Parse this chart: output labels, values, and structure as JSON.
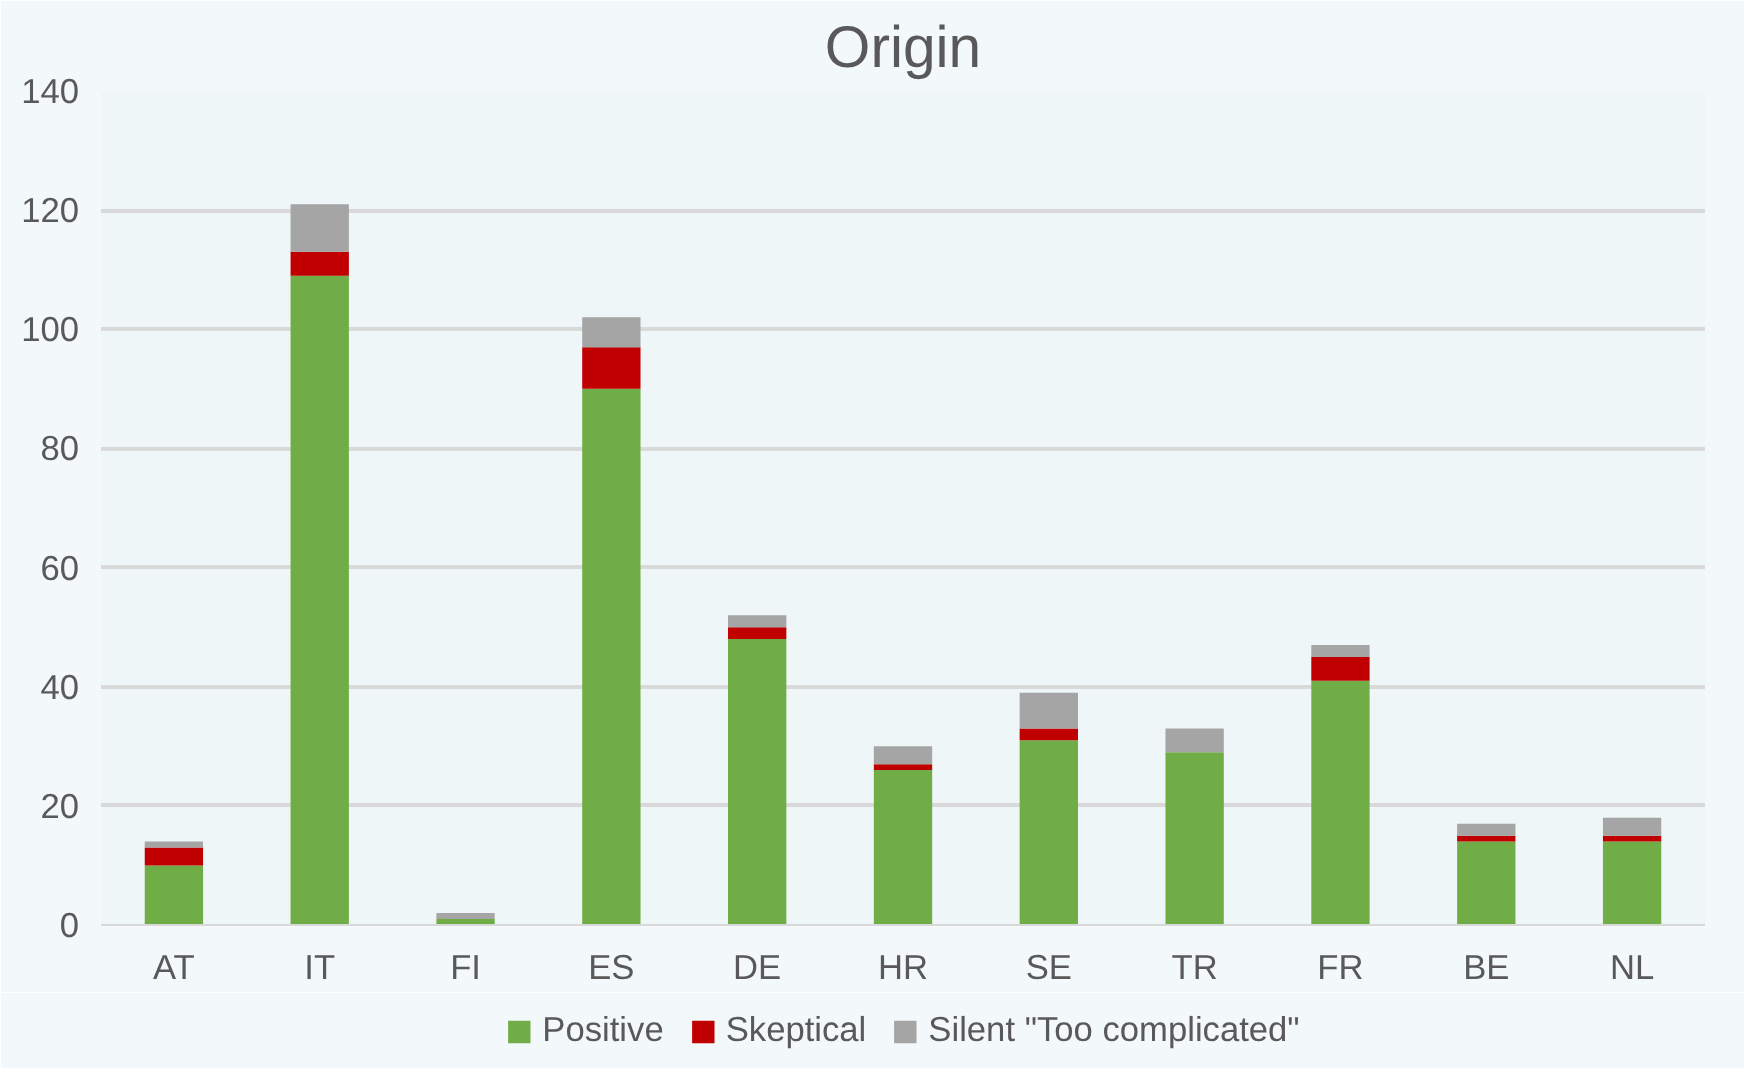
{
  "chart_data": {
    "type": "bar",
    "title": "Origin",
    "stacked": true,
    "categories": [
      "AT",
      "IT",
      "FI",
      "ES",
      "DE",
      "HR",
      "SE",
      "TR",
      "FR",
      "BE",
      "NL"
    ],
    "series": [
      {
        "name": "Positive",
        "color": "#70ad47",
        "values": [
          10,
          109,
          1,
          90,
          48,
          26,
          31,
          29,
          41,
          14,
          14
        ]
      },
      {
        "name": "Skeptical",
        "color": "#c00000",
        "values": [
          3,
          4,
          0,
          7,
          2,
          1,
          2,
          0,
          4,
          1,
          1
        ]
      },
      {
        "name": "Silent \"Too complicated\"",
        "color": "#a5a5a5",
        "values": [
          1,
          8,
          1,
          5,
          2,
          3,
          6,
          4,
          2,
          2,
          3
        ]
      }
    ],
    "ylim": [
      0,
      140
    ],
    "yticks": [
      0,
      20,
      40,
      60,
      80,
      100,
      120,
      140
    ],
    "grid": "y",
    "legend": "bottom"
  }
}
